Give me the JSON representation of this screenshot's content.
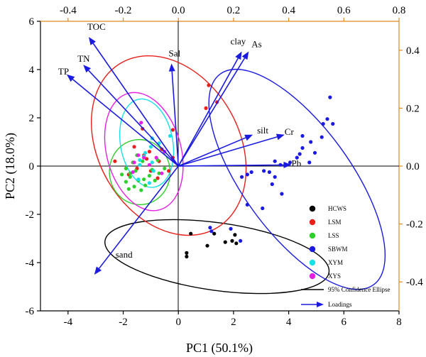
{
  "chart_data": {
    "type": "scatter",
    "title": "",
    "xlabel": "PC1 (50.1%)",
    "ylabel": "PC2 (18.0%)",
    "xlim": [
      -5,
      8
    ],
    "ylim": [
      -6,
      6
    ],
    "x_ticks": [
      -4,
      -2,
      0,
      2,
      4,
      6,
      8
    ],
    "y_ticks": [
      -6,
      -4,
      -2,
      0,
      2,
      4,
      6
    ],
    "top_axis": {
      "range": [
        -0.5,
        0.8
      ],
      "ticks": [
        -0.4,
        -0.2,
        0.0,
        0.2,
        0.4,
        0.6,
        0.8
      ],
      "labels": [
        "-0.4",
        "-0.2",
        "0.0",
        "0.2",
        "0.4",
        "0.6",
        "0.8"
      ],
      "color": "#e08a1e"
    },
    "right_axis": {
      "range": [
        -0.5,
        0.5
      ],
      "ticks": [
        -0.4,
        -0.2,
        0.0,
        0.2,
        0.4
      ],
      "labels": [
        "-0.4",
        "-0.2",
        "0.0",
        "0.2",
        "0.4"
      ],
      "color": "#e08a1e"
    },
    "grid": false,
    "legend_position": "bottom-right",
    "series": [
      {
        "name": "HCWS",
        "color": "#000000",
        "points": [
          [
            0.3,
            -3.6
          ],
          [
            0.3,
            -3.75
          ],
          [
            0.45,
            -2.8
          ],
          [
            1.05,
            -3.3
          ],
          [
            1.3,
            -2.8
          ],
          [
            1.7,
            -3.15
          ],
          [
            1.95,
            -3.1
          ],
          [
            2.05,
            -2.85
          ],
          [
            2.1,
            -3.2
          ]
        ]
      },
      {
        "name": "LSM",
        "color": "#e8201c",
        "points": [
          [
            1.1,
            3.35
          ],
          [
            1.0,
            2.4
          ],
          [
            1.4,
            2.65
          ],
          [
            -0.2,
            1.5
          ],
          [
            -1.3,
            1.55
          ],
          [
            -1.6,
            0.8
          ],
          [
            -1.25,
            0.45
          ],
          [
            -1.05,
            0.6
          ],
          [
            -0.7,
            0.2
          ],
          [
            -0.35,
            -0.2
          ],
          [
            -1.15,
            0.3
          ],
          [
            -2.3,
            0.2
          ],
          [
            -0.75,
            -0.5
          ],
          [
            -1.5,
            -0.1
          ],
          [
            -0.2,
            0.35
          ],
          [
            -1.8,
            -0.35
          ],
          [
            -0.6,
            0.7
          ],
          [
            -1.0,
            -0.2
          ]
        ]
      },
      {
        "name": "LSS",
        "color": "#2fd02b",
        "points": [
          [
            -2.05,
            -0.35
          ],
          [
            -1.9,
            -0.1
          ],
          [
            -1.75,
            -0.3
          ],
          [
            -1.6,
            -0.85
          ],
          [
            -1.45,
            -0.6
          ],
          [
            -1.35,
            -1.0
          ],
          [
            -1.2,
            -0.8
          ],
          [
            -1.05,
            -0.4
          ],
          [
            -0.95,
            -0.15
          ],
          [
            -0.85,
            -0.6
          ],
          [
            -0.7,
            -0.3
          ],
          [
            -1.55,
            -0.2
          ],
          [
            -1.5,
            0.45
          ],
          [
            -1.75,
            -0.45
          ],
          [
            -1.3,
            0.2
          ],
          [
            -0.75,
            0.25
          ],
          [
            -1.65,
            0.15
          ],
          [
            -1.9,
            -0.65
          ],
          [
            -1.8,
            -0.95
          ],
          [
            -1.25,
            -0.55
          ],
          [
            -0.5,
            -0.1
          ]
        ]
      },
      {
        "name": "SBWM",
        "color": "#1a1ae0",
        "points": [
          [
            5.5,
            2.85
          ],
          [
            5.4,
            1.95
          ],
          [
            5.6,
            1.75
          ],
          [
            5.25,
            1.75
          ],
          [
            5.2,
            1.2
          ],
          [
            4.5,
            1.25
          ],
          [
            4.8,
            1.0
          ],
          [
            4.5,
            0.75
          ],
          [
            4.95,
            0.55
          ],
          [
            4.4,
            0.5
          ],
          [
            4.75,
            0.15
          ],
          [
            4.3,
            0.35
          ],
          [
            4.05,
            0.15
          ],
          [
            3.5,
            0.2
          ],
          [
            3.7,
            0.05
          ],
          [
            3.1,
            -0.2
          ],
          [
            3.3,
            -0.25
          ],
          [
            3.5,
            -0.45
          ],
          [
            2.65,
            -0.25
          ],
          [
            2.5,
            -0.35
          ],
          [
            2.3,
            -0.45
          ],
          [
            3.4,
            -0.75
          ],
          [
            3.75,
            -1.15
          ],
          [
            3.05,
            -1.75
          ],
          [
            2.5,
            -1.6
          ],
          [
            1.2,
            -2.7
          ],
          [
            1.15,
            -2.55
          ],
          [
            1.9,
            -2.6
          ],
          [
            2.25,
            -3.1
          ]
        ]
      },
      {
        "name": "XYM",
        "color": "#18e0e8",
        "points": [
          [
            -0.3,
            1.25
          ],
          [
            -0.95,
            1.15
          ],
          [
            -1.2,
            0.55
          ],
          [
            -1.25,
            0.4
          ],
          [
            -1.4,
            0.25
          ],
          [
            -1.4,
            0.05
          ],
          [
            -0.9,
            -0.2
          ],
          [
            -1.45,
            -0.55
          ],
          [
            -1.05,
            -0.7
          ],
          [
            -0.95,
            0.15
          ],
          [
            -1.0,
            0.8
          ],
          [
            -0.7,
            0.95
          ]
        ]
      },
      {
        "name": "XYS",
        "color": "#e620e3",
        "points": [
          [
            -1.35,
            1.8
          ],
          [
            -1.45,
            0.45
          ],
          [
            -1.25,
            0.35
          ],
          [
            -1.6,
            0.15
          ],
          [
            -1.05,
            0.05
          ],
          [
            -1.65,
            -0.25
          ],
          [
            -0.8,
            0.35
          ],
          [
            -0.5,
            0.6
          ],
          [
            -0.6,
            -0.3
          ]
        ]
      }
    ],
    "ellipses": [
      {
        "name": "HCWS",
        "color": "#000000",
        "cx": 1.4,
        "cy": -3.75,
        "rx": 4.1,
        "ry": 1.4,
        "angle": 8
      },
      {
        "name": "LSM",
        "color": "#e8201c",
        "cx": -0.35,
        "cy": 0.85,
        "rx": 2.55,
        "ry": 3.95,
        "angle": -30
      },
      {
        "name": "LSS",
        "color": "#2fd02b",
        "cx": -1.4,
        "cy": -0.25,
        "rx": 1.1,
        "ry": 1.35,
        "angle": -5
      },
      {
        "name": "SBWM",
        "color": "#1a1ae0",
        "cx": 4.3,
        "cy": -0.55,
        "rx": 1.95,
        "ry": 5.4,
        "angle": -36
      },
      {
        "name": "XYM",
        "color": "#18e0e8",
        "cx": -1.15,
        "cy": 0.95,
        "rx": 0.95,
        "ry": 1.85,
        "angle": -10
      },
      {
        "name": "XYS",
        "color": "#e620e3",
        "cx": -1.25,
        "cy": 0.6,
        "rx": 1.35,
        "ry": 2.5,
        "angle": -15
      }
    ],
    "loadings": [
      {
        "label": "TOC",
        "x": -3.25,
        "y": 5.35
      },
      {
        "label": "TN",
        "x": -3.45,
        "y": 4.2
      },
      {
        "label": "TP",
        "x": -4.05,
        "y": 3.8
      },
      {
        "label": "Sal",
        "x": -0.25,
        "y": 4.25
      },
      {
        "label": "clay",
        "x": 2.3,
        "y": 4.75
      },
      {
        "label": "As",
        "x": 2.55,
        "y": 4.75
      },
      {
        "label": "silt",
        "x": 2.7,
        "y": 1.3
      },
      {
        "label": "Cr",
        "x": 3.85,
        "y": 1.3
      },
      {
        "label": "Pb",
        "x": 4.1,
        "y": 0.05
      },
      {
        "label": "sand",
        "x": -3.05,
        "y": -4.5
      }
    ],
    "loading_color": "#1a1ae0",
    "legend": {
      "entries": [
        "HCWS",
        "LSM",
        "LSS",
        "SBWM",
        "XYM",
        "XYS"
      ],
      "ellipse_label": "95% Confidence Ellipse",
      "loadings_label": "Loadings"
    }
  }
}
